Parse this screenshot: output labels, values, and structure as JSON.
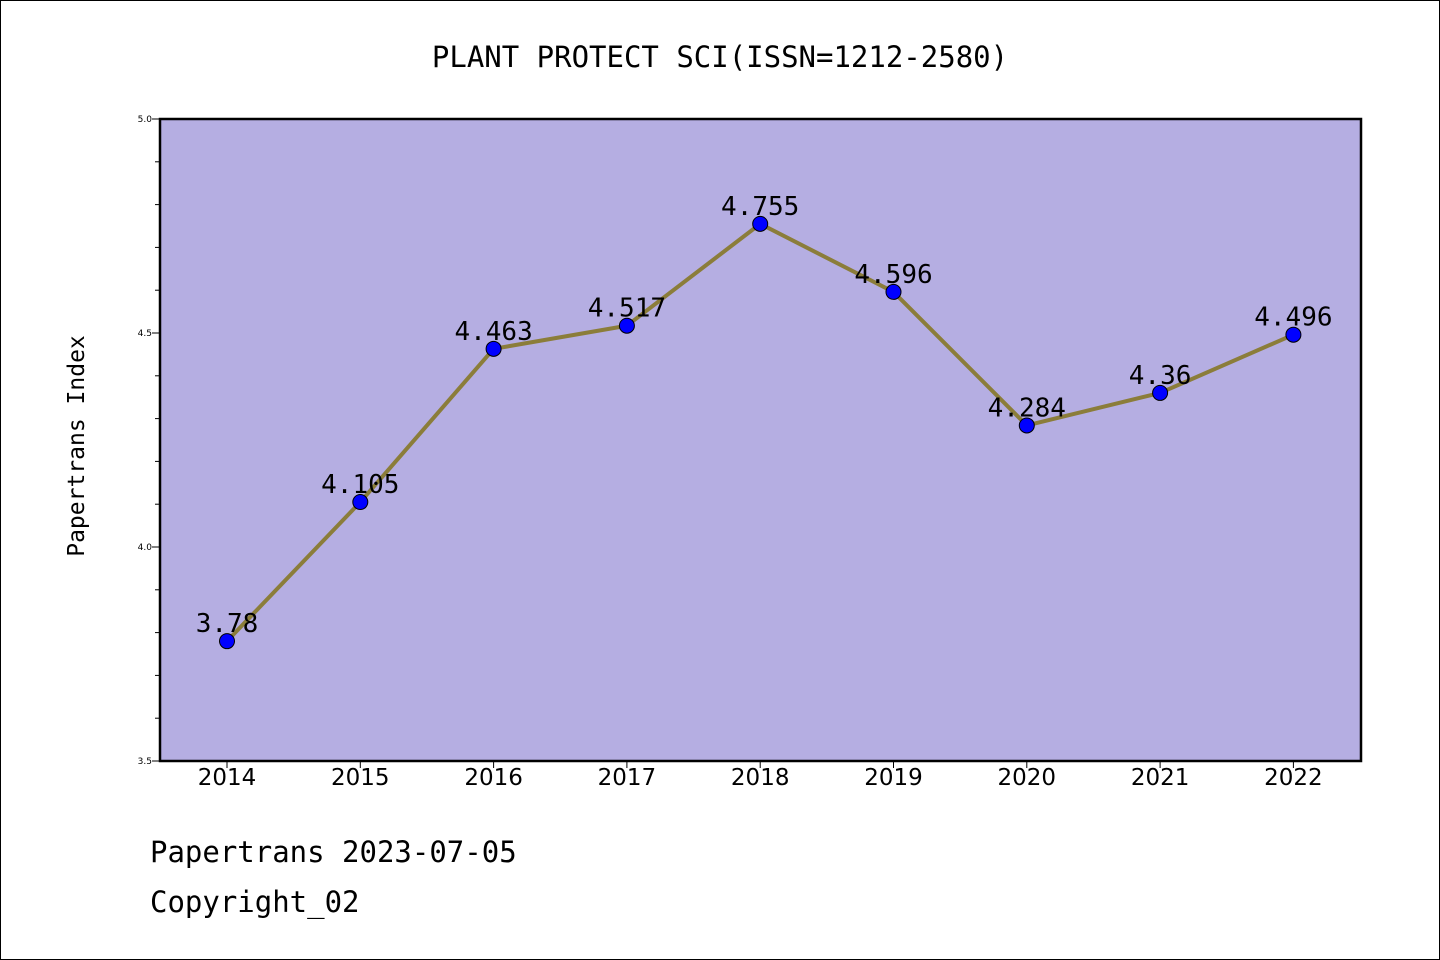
{
  "chart_data": {
    "type": "line",
    "title": "PLANT PROTECT SCI(ISSN=1212-2580)",
    "xlabel": "",
    "ylabel": "Papertrans Index",
    "categories": [
      "2014",
      "2015",
      "2016",
      "2017",
      "2018",
      "2019",
      "2020",
      "2021",
      "2022"
    ],
    "series": [
      {
        "values": [
          3.78,
          4.105,
          4.463,
          4.517,
          4.755,
          4.596,
          4.284,
          4.36,
          4.496
        ],
        "labels": [
          "3.78",
          "4.105",
          "4.463",
          "4.517",
          "4.755",
          "4.596",
          "4.284",
          "4.36",
          "4.496"
        ]
      }
    ],
    "ylim": [
      3.5,
      5.0
    ],
    "yticks": [
      3.5,
      4.0,
      4.5,
      5.0
    ],
    "ytick_labels": [
      "3.5",
      "4.0",
      "4.5",
      "5.0"
    ],
    "grid": false,
    "colors": {
      "plot_background": "#b5aee2",
      "line": "#8b7d3a",
      "marker": "#0000ff"
    }
  },
  "footer": {
    "source": "Papertrans 2023-07-05",
    "copyright": "Copyright_02"
  }
}
